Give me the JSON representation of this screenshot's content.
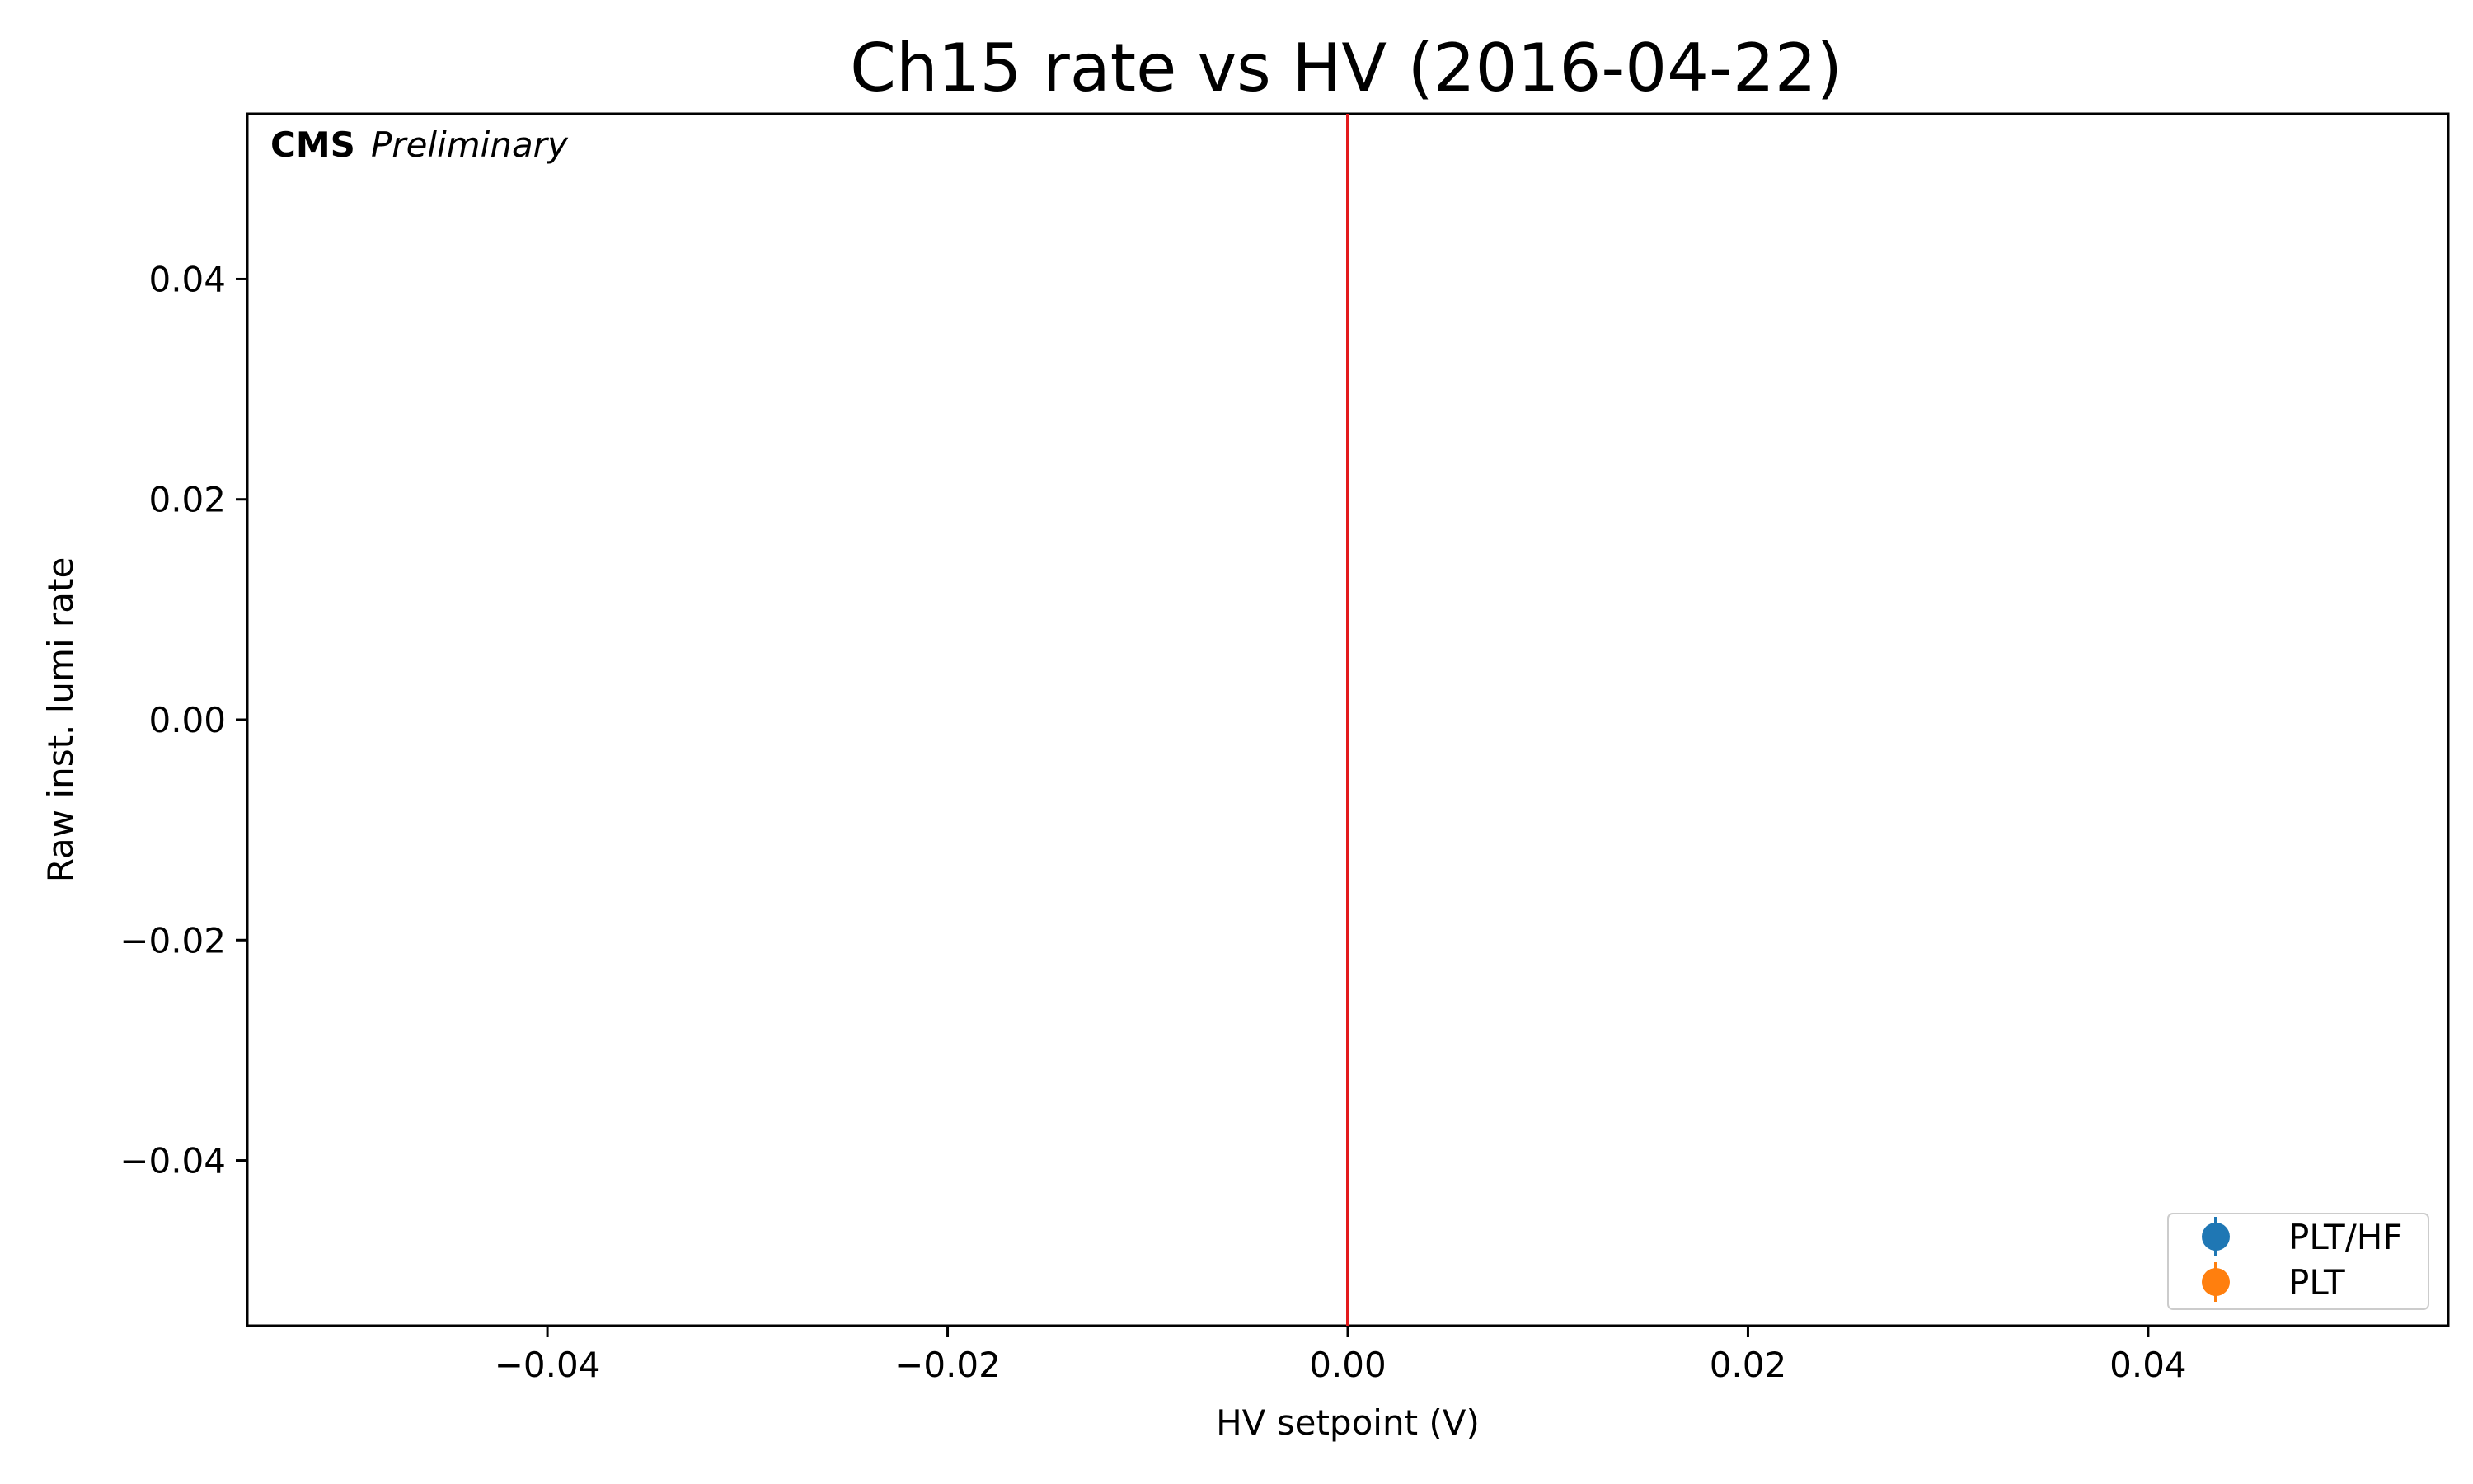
{
  "chart_data": {
    "type": "scatter",
    "title": "Ch15 rate vs HV (2016-04-22)",
    "xlabel": "HV setpoint (V)",
    "ylabel": "Raw inst. lumi rate",
    "xlim": [
      -0.055,
      0.055
    ],
    "ylim": [
      -0.055,
      0.055
    ],
    "xticks": [
      -0.04,
      -0.02,
      0.0,
      0.02,
      0.04
    ],
    "yticks": [
      -0.04,
      -0.02,
      0.0,
      0.02,
      0.04
    ],
    "xtick_labels": [
      "−0.04",
      "−0.02",
      "0.00",
      "0.02",
      "0.04"
    ],
    "ytick_labels": [
      "−0.04",
      "−0.02",
      "0.00",
      "0.02",
      "0.04"
    ],
    "grid": false,
    "legend_position": "bottom-right",
    "annotation": {
      "bold": "CMS",
      "italic": "Preliminary"
    },
    "vertical_line": {
      "x": 0.0,
      "color": "#e31a1c"
    },
    "series": [
      {
        "name": "PLT/HF",
        "color": "#1f77b4",
        "x": [],
        "y": []
      },
      {
        "name": "PLT",
        "color": "#ff7f0e",
        "x": [],
        "y": []
      }
    ]
  }
}
